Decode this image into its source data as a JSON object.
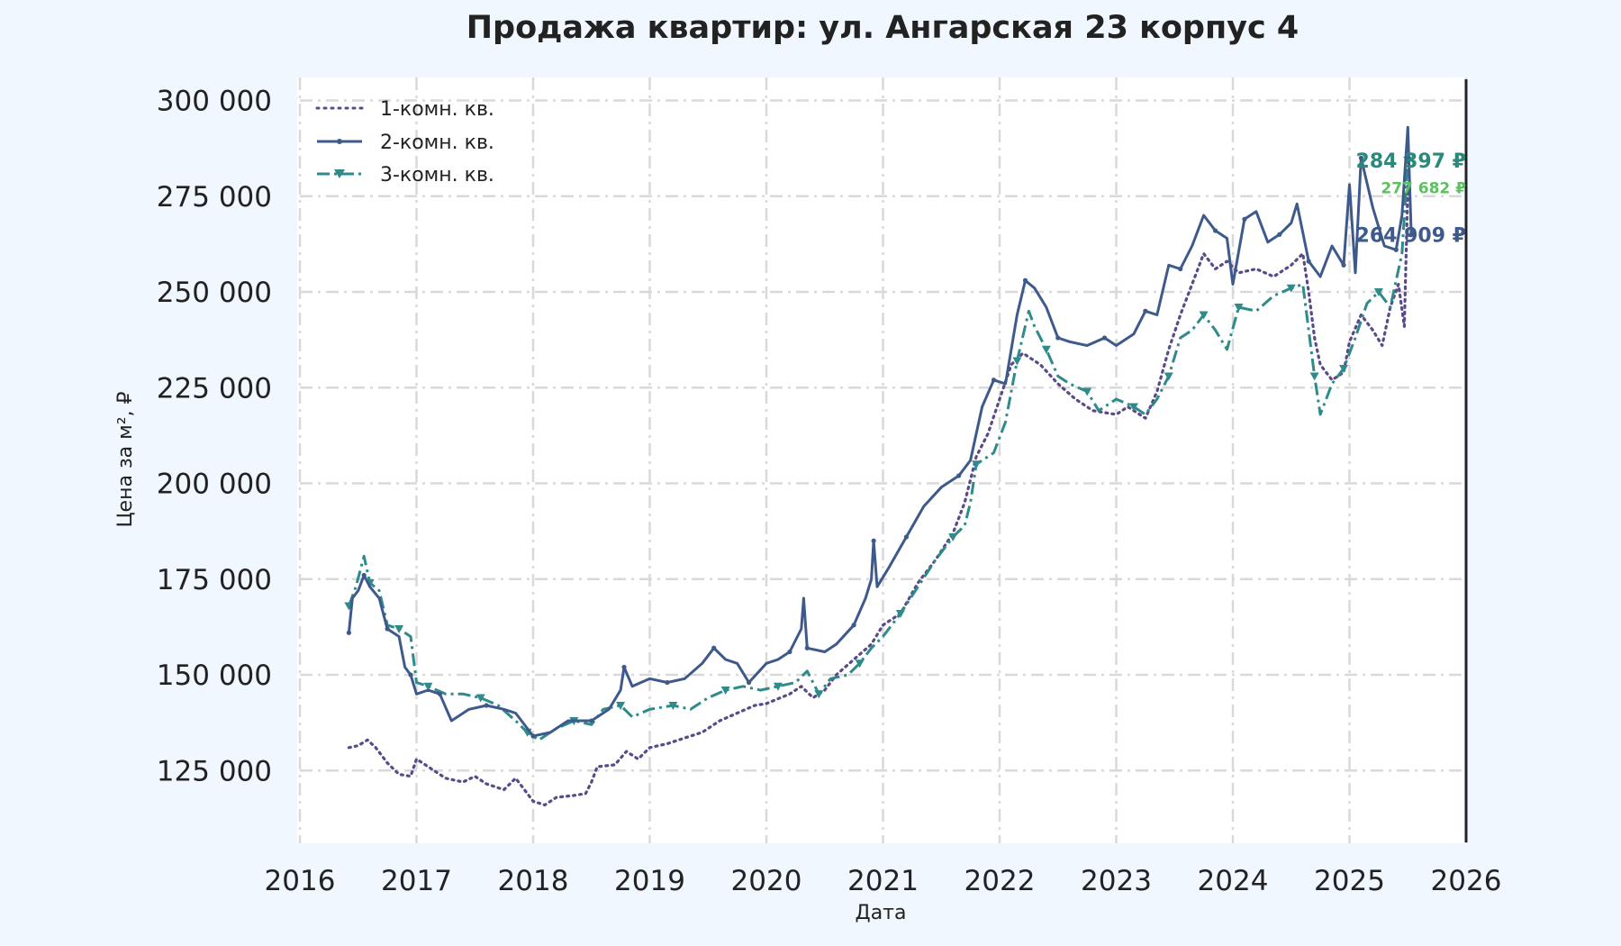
{
  "colors": {
    "background": "#f0f7ff",
    "plot_background": "#ffffff",
    "grid": "#d9d9d9",
    "text": "#222222",
    "series_1room": "#5a4a8a",
    "series_2room": "#3e5a8c",
    "series_3room": "#2f8a8a",
    "label_284": "#2a8a7a",
    "label_277": "#5cc060",
    "label_264": "#3e5a8c",
    "end_line": "#222222"
  },
  "chart_data": {
    "type": "line",
    "title": "Продажа квартир: ул. Ангарская 23 корпус 4",
    "xlabel": "Дата",
    "ylabel": "Цена за м², ₽",
    "xlim": [
      2016,
      2026
    ],
    "ylim": [
      106000,
      306000
    ],
    "x_ticks": [
      "2016",
      "2017",
      "2018",
      "2019",
      "2020",
      "2021",
      "2022",
      "2023",
      "2024",
      "2025",
      "2026"
    ],
    "y_ticks": [
      {
        "value": 125000,
        "label": "125 000"
      },
      {
        "value": 150000,
        "label": "150 000"
      },
      {
        "value": 175000,
        "label": "175 000"
      },
      {
        "value": 200000,
        "label": "200 000"
      },
      {
        "value": 225000,
        "label": "225 000"
      },
      {
        "value": 250000,
        "label": "250 000"
      },
      {
        "value": 275000,
        "label": "275 000"
      },
      {
        "value": 300000,
        "label": "300 000"
      }
    ],
    "grid": true,
    "legend_position": "top-left",
    "series": [
      {
        "name": "1-комн. кв.",
        "style": "dotted",
        "color_key": "series_1room",
        "points": [
          [
            2016.42,
            131000
          ],
          [
            2016.5,
            131500
          ],
          [
            2016.58,
            133000
          ],
          [
            2016.65,
            131000
          ],
          [
            2016.75,
            127000
          ],
          [
            2016.85,
            124000
          ],
          [
            2016.95,
            123500
          ],
          [
            2017.0,
            128000
          ],
          [
            2017.1,
            126000
          ],
          [
            2017.25,
            123000
          ],
          [
            2017.4,
            122000
          ],
          [
            2017.5,
            123500
          ],
          [
            2017.6,
            121500
          ],
          [
            2017.75,
            120000
          ],
          [
            2017.85,
            123000
          ],
          [
            2017.9,
            121000
          ],
          [
            2018.0,
            117000
          ],
          [
            2018.1,
            116000
          ],
          [
            2018.2,
            118000
          ],
          [
            2018.35,
            118500
          ],
          [
            2018.45,
            119000
          ],
          [
            2018.5,
            122000
          ],
          [
            2018.55,
            126000
          ],
          [
            2018.7,
            126500
          ],
          [
            2018.8,
            130000
          ],
          [
            2018.9,
            128000
          ],
          [
            2019.0,
            131000
          ],
          [
            2019.15,
            132000
          ],
          [
            2019.3,
            133500
          ],
          [
            2019.45,
            135000
          ],
          [
            2019.6,
            138000
          ],
          [
            2019.75,
            140000
          ],
          [
            2019.9,
            142000
          ],
          [
            2020.0,
            142500
          ],
          [
            2020.2,
            145000
          ],
          [
            2020.3,
            147000
          ],
          [
            2020.4,
            144000
          ],
          [
            2020.5,
            146000
          ],
          [
            2020.6,
            150000
          ],
          [
            2020.75,
            154000
          ],
          [
            2020.9,
            158000
          ],
          [
            2021.0,
            163000
          ],
          [
            2021.15,
            166000
          ],
          [
            2021.3,
            174000
          ],
          [
            2021.45,
            180000
          ],
          [
            2021.6,
            187000
          ],
          [
            2021.7,
            195000
          ],
          [
            2021.8,
            207000
          ],
          [
            2021.9,
            213000
          ],
          [
            2022.0,
            222000
          ],
          [
            2022.1,
            231000
          ],
          [
            2022.2,
            234000
          ],
          [
            2022.35,
            231000
          ],
          [
            2022.5,
            226000
          ],
          [
            2022.65,
            222000
          ],
          [
            2022.8,
            219000
          ],
          [
            2023.0,
            218000
          ],
          [
            2023.1,
            220000
          ],
          [
            2023.25,
            217000
          ],
          [
            2023.35,
            224000
          ],
          [
            2023.45,
            235000
          ],
          [
            2023.55,
            244000
          ],
          [
            2023.65,
            252000
          ],
          [
            2023.75,
            260000
          ],
          [
            2023.85,
            256000
          ],
          [
            2023.95,
            258000
          ],
          [
            2024.05,
            255000
          ],
          [
            2024.2,
            256000
          ],
          [
            2024.35,
            254000
          ],
          [
            2024.5,
            257000
          ],
          [
            2024.6,
            260000
          ],
          [
            2024.65,
            250000
          ],
          [
            2024.7,
            238000
          ],
          [
            2024.75,
            231000
          ],
          [
            2024.85,
            227000
          ],
          [
            2024.95,
            229000
          ],
          [
            2025.0,
            237000
          ],
          [
            2025.1,
            244000
          ],
          [
            2025.2,
            240000
          ],
          [
            2025.28,
            236000
          ],
          [
            2025.35,
            246000
          ],
          [
            2025.42,
            252000
          ],
          [
            2025.47,
            241000
          ],
          [
            2025.5,
            277682
          ]
        ]
      },
      {
        "name": "2-комн. кв.",
        "style": "solid",
        "color_key": "series_2room",
        "points": [
          [
            2016.42,
            161000
          ],
          [
            2016.45,
            170000
          ],
          [
            2016.5,
            172000
          ],
          [
            2016.55,
            176000
          ],
          [
            2016.6,
            173000
          ],
          [
            2016.68,
            170000
          ],
          [
            2016.75,
            162000
          ],
          [
            2016.85,
            160000
          ],
          [
            2016.9,
            152000
          ],
          [
            2016.95,
            150000
          ],
          [
            2017.0,
            145000
          ],
          [
            2017.1,
            146000
          ],
          [
            2017.2,
            145000
          ],
          [
            2017.3,
            138000
          ],
          [
            2017.45,
            141000
          ],
          [
            2017.6,
            142000
          ],
          [
            2017.75,
            141000
          ],
          [
            2017.85,
            140000
          ],
          [
            2018.0,
            134000
          ],
          [
            2018.15,
            135000
          ],
          [
            2018.3,
            138000
          ],
          [
            2018.5,
            138000
          ],
          [
            2018.65,
            141000
          ],
          [
            2018.75,
            146000
          ],
          [
            2018.78,
            152000
          ],
          [
            2018.85,
            147000
          ],
          [
            2019.0,
            149000
          ],
          [
            2019.15,
            148000
          ],
          [
            2019.3,
            149000
          ],
          [
            2019.45,
            153000
          ],
          [
            2019.55,
            157000
          ],
          [
            2019.65,
            154000
          ],
          [
            2019.75,
            153000
          ],
          [
            2019.85,
            148000
          ],
          [
            2020.0,
            153000
          ],
          [
            2020.1,
            154000
          ],
          [
            2020.2,
            156000
          ],
          [
            2020.3,
            162000
          ],
          [
            2020.32,
            170000
          ],
          [
            2020.35,
            157000
          ],
          [
            2020.5,
            156000
          ],
          [
            2020.6,
            158000
          ],
          [
            2020.75,
            163000
          ],
          [
            2020.85,
            170000
          ],
          [
            2020.9,
            175000
          ],
          [
            2020.92,
            185000
          ],
          [
            2020.95,
            173000
          ],
          [
            2021.05,
            178000
          ],
          [
            2021.2,
            186000
          ],
          [
            2021.35,
            194000
          ],
          [
            2021.5,
            199000
          ],
          [
            2021.65,
            202000
          ],
          [
            2021.75,
            206000
          ],
          [
            2021.85,
            220000
          ],
          [
            2021.95,
            227000
          ],
          [
            2022.05,
            226000
          ],
          [
            2022.15,
            244000
          ],
          [
            2022.22,
            253000
          ],
          [
            2022.3,
            251000
          ],
          [
            2022.4,
            246000
          ],
          [
            2022.5,
            238000
          ],
          [
            2022.6,
            237000
          ],
          [
            2022.75,
            236000
          ],
          [
            2022.9,
            238000
          ],
          [
            2023.0,
            236000
          ],
          [
            2023.15,
            239000
          ],
          [
            2023.25,
            245000
          ],
          [
            2023.35,
            244000
          ],
          [
            2023.45,
            257000
          ],
          [
            2023.55,
            256000
          ],
          [
            2023.65,
            262000
          ],
          [
            2023.75,
            270000
          ],
          [
            2023.85,
            266000
          ],
          [
            2023.95,
            264000
          ],
          [
            2024.0,
            252000
          ],
          [
            2024.1,
            269000
          ],
          [
            2024.2,
            271000
          ],
          [
            2024.3,
            263000
          ],
          [
            2024.4,
            265000
          ],
          [
            2024.5,
            268000
          ],
          [
            2024.55,
            273000
          ],
          [
            2024.65,
            258000
          ],
          [
            2024.75,
            254000
          ],
          [
            2024.85,
            262000
          ],
          [
            2024.95,
            257000
          ],
          [
            2025.0,
            278000
          ],
          [
            2025.05,
            255000
          ],
          [
            2025.1,
            285000
          ],
          [
            2025.2,
            272000
          ],
          [
            2025.3,
            262000
          ],
          [
            2025.4,
            261000
          ],
          [
            2025.45,
            270000
          ],
          [
            2025.5,
            293000
          ],
          [
            2025.53,
            264909
          ]
        ]
      },
      {
        "name": "3-комн. кв.",
        "style": "dashdot",
        "color_key": "series_3room",
        "points": [
          [
            2016.42,
            168000
          ],
          [
            2016.48,
            173000
          ],
          [
            2016.55,
            181000
          ],
          [
            2016.6,
            174000
          ],
          [
            2016.68,
            172000
          ],
          [
            2016.75,
            163000
          ],
          [
            2016.85,
            162000
          ],
          [
            2016.95,
            160000
          ],
          [
            2017.0,
            148000
          ],
          [
            2017.1,
            147000
          ],
          [
            2017.25,
            145000
          ],
          [
            2017.4,
            145000
          ],
          [
            2017.55,
            144000
          ],
          [
            2017.7,
            142000
          ],
          [
            2017.85,
            138000
          ],
          [
            2017.95,
            135000
          ],
          [
            2018.05,
            133000
          ],
          [
            2018.2,
            136000
          ],
          [
            2018.35,
            138000
          ],
          [
            2018.5,
            137000
          ],
          [
            2018.6,
            141000
          ],
          [
            2018.75,
            142000
          ],
          [
            2018.85,
            139000
          ],
          [
            2019.0,
            141000
          ],
          [
            2019.2,
            142000
          ],
          [
            2019.35,
            141000
          ],
          [
            2019.5,
            144000
          ],
          [
            2019.65,
            146000
          ],
          [
            2019.8,
            147000
          ],
          [
            2019.95,
            146000
          ],
          [
            2020.1,
            147000
          ],
          [
            2020.25,
            148000
          ],
          [
            2020.35,
            151000
          ],
          [
            2020.45,
            145000
          ],
          [
            2020.55,
            149000
          ],
          [
            2020.7,
            150000
          ],
          [
            2020.8,
            153000
          ],
          [
            2020.9,
            157000
          ],
          [
            2021.0,
            160000
          ],
          [
            2021.15,
            166000
          ],
          [
            2021.3,
            173000
          ],
          [
            2021.45,
            180000
          ],
          [
            2021.6,
            186000
          ],
          [
            2021.7,
            189000
          ],
          [
            2021.75,
            195000
          ],
          [
            2021.8,
            205000
          ],
          [
            2021.95,
            208000
          ],
          [
            2022.05,
            216000
          ],
          [
            2022.15,
            232000
          ],
          [
            2022.25,
            245000
          ],
          [
            2022.3,
            241000
          ],
          [
            2022.4,
            235000
          ],
          [
            2022.5,
            228000
          ],
          [
            2022.6,
            226000
          ],
          [
            2022.75,
            224000
          ],
          [
            2022.85,
            219000
          ],
          [
            2023.0,
            222000
          ],
          [
            2023.15,
            220000
          ],
          [
            2023.25,
            218000
          ],
          [
            2023.35,
            222000
          ],
          [
            2023.45,
            228000
          ],
          [
            2023.55,
            238000
          ],
          [
            2023.65,
            240000
          ],
          [
            2023.75,
            244000
          ],
          [
            2023.85,
            240000
          ],
          [
            2023.95,
            235000
          ],
          [
            2024.05,
            246000
          ],
          [
            2024.2,
            245000
          ],
          [
            2024.35,
            249000
          ],
          [
            2024.5,
            251000
          ],
          [
            2024.6,
            252000
          ],
          [
            2024.65,
            240000
          ],
          [
            2024.7,
            228000
          ],
          [
            2024.75,
            218000
          ],
          [
            2024.85,
            226000
          ],
          [
            2024.95,
            230000
          ],
          [
            2025.05,
            238000
          ],
          [
            2025.15,
            247000
          ],
          [
            2025.25,
            250000
          ],
          [
            2025.35,
            246000
          ],
          [
            2025.45,
            260000
          ],
          [
            2025.5,
            284397
          ]
        ]
      }
    ],
    "end_labels": [
      {
        "text": "284 397 ₽",
        "value": 284397,
        "color_key": "label_284",
        "size": "large"
      },
      {
        "text": "277 682 ₽",
        "value": 277682,
        "color_key": "label_277",
        "size": "small"
      },
      {
        "text": "264 909 ₽",
        "value": 264909,
        "color_key": "label_264",
        "size": "large"
      }
    ]
  }
}
